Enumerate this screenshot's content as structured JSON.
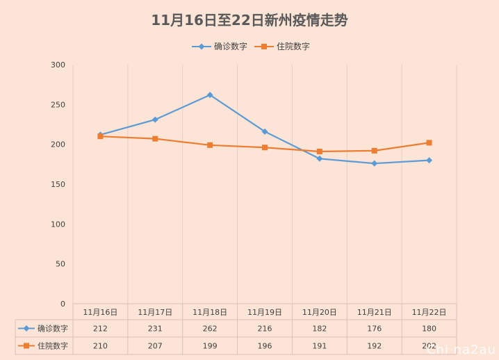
{
  "chart_data": {
    "type": "line",
    "title": "11月16日至22日新州疫情走势",
    "categories": [
      "11月16日",
      "11月17日",
      "11月18日",
      "11月19日",
      "11月20日",
      "11月21日",
      "11月22日"
    ],
    "series": [
      {
        "name": "确诊数字",
        "values": [
          212,
          231,
          262,
          216,
          182,
          176,
          180
        ],
        "color": "#5b9bd5",
        "marker": "diamond"
      },
      {
        "name": "住院数字",
        "values": [
          210,
          207,
          199,
          196,
          191,
          192,
          202
        ],
        "color": "#ed7d31",
        "marker": "square"
      }
    ],
    "ylim": [
      0,
      300
    ],
    "yticks": [
      0,
      50,
      100,
      150,
      200,
      250,
      300
    ],
    "grid": "vertical",
    "legend": "top",
    "data_table": true
  },
  "watermark": "Chi na2au",
  "colors": {
    "background": "#fce4d6"
  }
}
